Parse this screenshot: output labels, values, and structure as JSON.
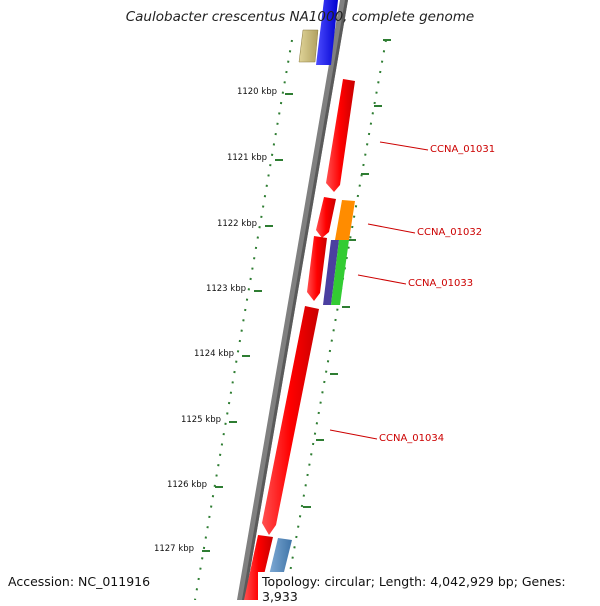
{
  "header": {
    "title": "Caulobacter crescentus NA1000, complete genome"
  },
  "footer": {
    "accession": "Accession: NC_011916",
    "summary": "Topology: circular; Length: 4,042,929 bp; Genes: 3,933"
  },
  "map": {
    "ticks": [
      {
        "label": "1120 kbp"
      },
      {
        "label": "1121 kbp"
      },
      {
        "label": "1122 kbp"
      },
      {
        "label": "1123 kbp"
      },
      {
        "label": "1124 kbp"
      },
      {
        "label": "1125 kbp"
      },
      {
        "label": "1126 kbp"
      },
      {
        "label": "1127 kbp"
      }
    ],
    "gene_labels": [
      "CCNA_01031",
      "CCNA_01032",
      "CCNA_01033",
      "CCNA_01034"
    ],
    "colors": {
      "backbone": "#808080",
      "forward_gene": "#ff0000",
      "scale_tick": "#2e7d32",
      "gene_label": "#cc0000",
      "feature_orange": "#ff8c00",
      "feature_green": "#33cc33",
      "feature_indigo": "#4b3fa0",
      "feature_blue": "#0000ff",
      "feature_khaki": "#c8b878",
      "feature_steelblue": "#5b8fc0"
    }
  }
}
